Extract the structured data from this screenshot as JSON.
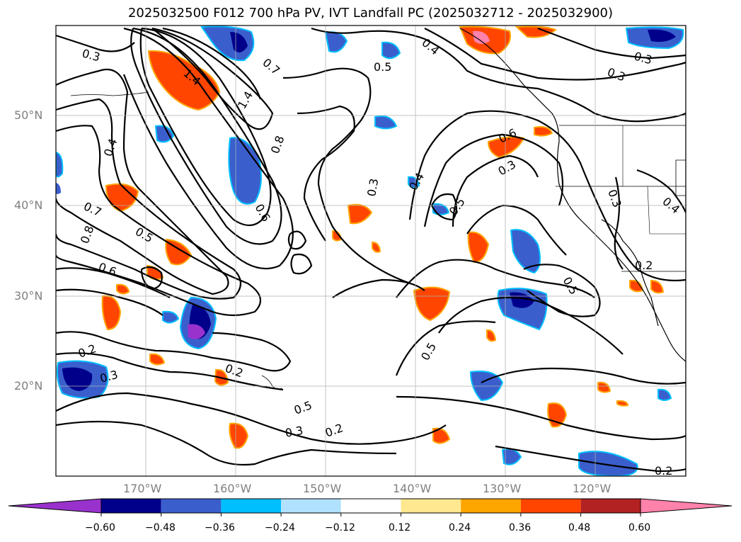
{
  "title": "2025032500 F012 700 hPa PV, IVT Landfall PC (2025032712 - 2025032900)",
  "lat_labels": [
    "50°N",
    "40°N",
    "30°N",
    "20°N"
  ],
  "lon_labels": [
    "170°W",
    "160°W",
    "150°W",
    "140°W",
    "130°W",
    "120°W"
  ],
  "contour_labels": [
    "0.3",
    "1.4",
    "0.7",
    "0.5",
    "0.4",
    "1.4",
    "0.8",
    "0.4",
    "0.3",
    "0.6",
    "0.6",
    "0.3",
    "0.4",
    "0.5",
    "0.7",
    "0.8",
    "0.5",
    "0.6",
    "0.5",
    "0.3",
    "0.3",
    "0.2",
    "0.2",
    "0.3",
    "0.2",
    "0.5",
    "0.3",
    "0.2",
    "0.5",
    "0.4",
    "0.3",
    "0.2"
  ],
  "colorbar": {
    "ticks": [
      "−0.60",
      "−0.48",
      "−0.36",
      "−0.24",
      "−0.12",
      "0.12",
      "0.24",
      "0.36",
      "0.48",
      "0.60"
    ],
    "colors": [
      "#9932CC",
      "#00008B",
      "#3A5FCD",
      "#00BFFF",
      "#B0E2FF",
      "#FFFFFF",
      "#FFE890",
      "#FFA500",
      "#FF4500",
      "#B22222",
      "#FF82AB"
    ]
  }
}
